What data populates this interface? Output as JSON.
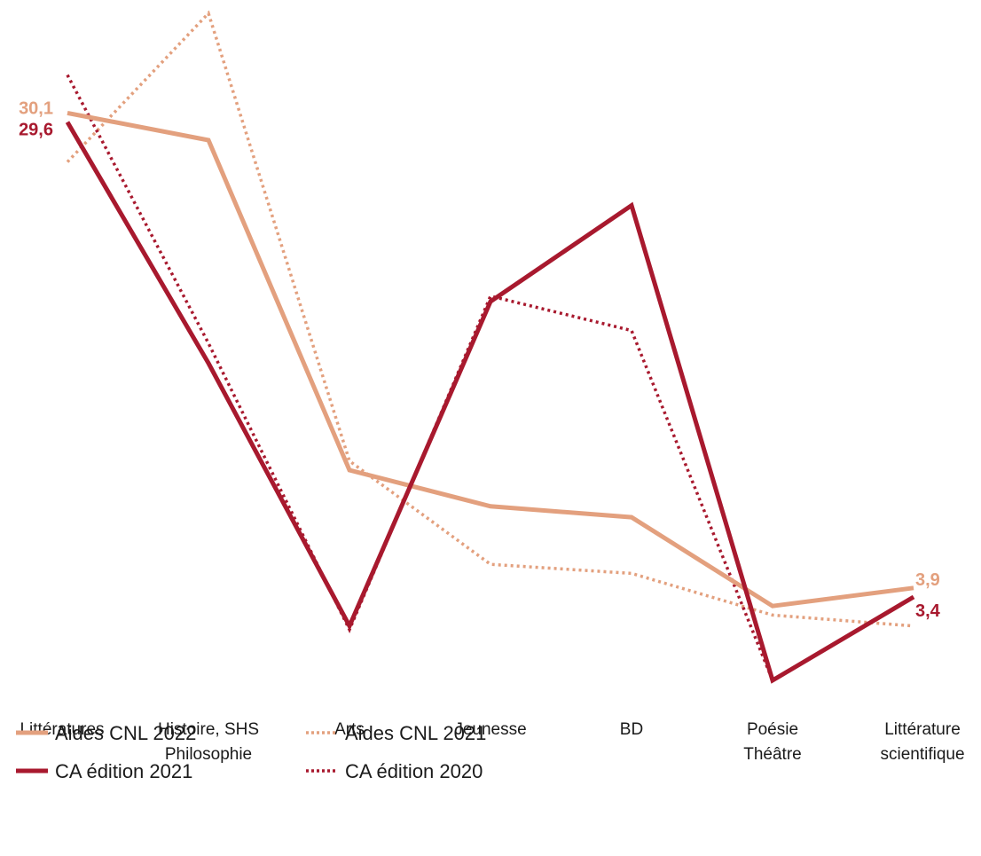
{
  "chart_data": {
    "type": "line",
    "title": "",
    "xlabel": "",
    "ylabel": "",
    "ylim": [
      0,
      36
    ],
    "grid": false,
    "legend_position": "bottom-left",
    "categories": [
      [
        "Littératures"
      ],
      [
        "Histoire, SHS",
        "Philosophie"
      ],
      [
        "Arts"
      ],
      [
        "Jeunesse"
      ],
      [
        "BD"
      ],
      [
        "Poésie",
        "Théâtre"
      ],
      [
        "Littérature",
        "scientifique"
      ]
    ],
    "series": [
      {
        "name": "Aides CNL 2022",
        "values": [
          30.1,
          28.6,
          10.4,
          8.4,
          7.8,
          2.9,
          3.9
        ],
        "color": "#e3a07e",
        "style": "solid"
      },
      {
        "name": "Aides CNL 2021",
        "values": [
          27.4,
          35.6,
          10.9,
          5.2,
          4.7,
          2.4,
          1.8
        ],
        "color": "#e3a07e",
        "style": "dotted"
      },
      {
        "name": "CA édition 2021",
        "values": [
          29.6,
          16.3,
          1.8,
          19.7,
          25.0,
          -1.2,
          3.4
        ],
        "color": "#a8192e",
        "style": "solid"
      },
      {
        "name": "CA édition 2020",
        "values": [
          32.2,
          17.4,
          1.6,
          20.0,
          18.1,
          -1.2,
          3.4
        ],
        "color": "#a8192e",
        "style": "dotted"
      }
    ],
    "data_labels": {
      "start": [
        {
          "series": 0,
          "text": "30,1"
        },
        {
          "series": 2,
          "text": "29,6"
        }
      ],
      "end": [
        {
          "series": 0,
          "text": "3,9"
        },
        {
          "series": 2,
          "text": "3,4"
        }
      ]
    }
  }
}
